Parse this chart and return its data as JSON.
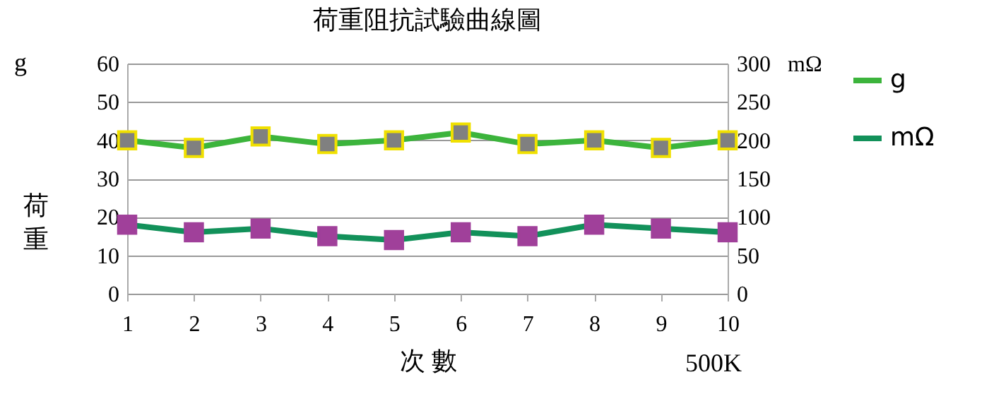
{
  "chart_data": {
    "type": "line",
    "title": "荷重阻抗試驗曲線圖",
    "xlabel": "次 數",
    "ylabel": "荷重",
    "y2label": "mΩ",
    "annotations": [
      "g",
      "500K"
    ],
    "x": [
      1,
      2,
      3,
      4,
      5,
      6,
      7,
      8,
      9,
      10
    ],
    "xlim": [
      1,
      10
    ],
    "xticks": [
      1,
      2,
      3,
      4,
      5,
      6,
      7,
      8,
      9,
      10
    ],
    "ylim": [
      0,
      60
    ],
    "yticks": [
      0,
      10,
      20,
      30,
      40,
      50,
      60
    ],
    "y2lim": [
      0,
      300
    ],
    "y2ticks": [
      0,
      50,
      100,
      150,
      200,
      250,
      300
    ],
    "series": [
      {
        "name": "g",
        "color": "#3cb43c",
        "values": [
          40,
          38,
          41,
          39,
          40,
          42,
          39,
          40,
          38,
          40
        ]
      },
      {
        "name": "mΩ",
        "color": "#12915a",
        "axis": "y2",
        "values": [
          90,
          80,
          85,
          75,
          70,
          80,
          75,
          90,
          85,
          80
        ]
      }
    ],
    "marker": "square",
    "grid": "y",
    "legend": "right"
  }
}
